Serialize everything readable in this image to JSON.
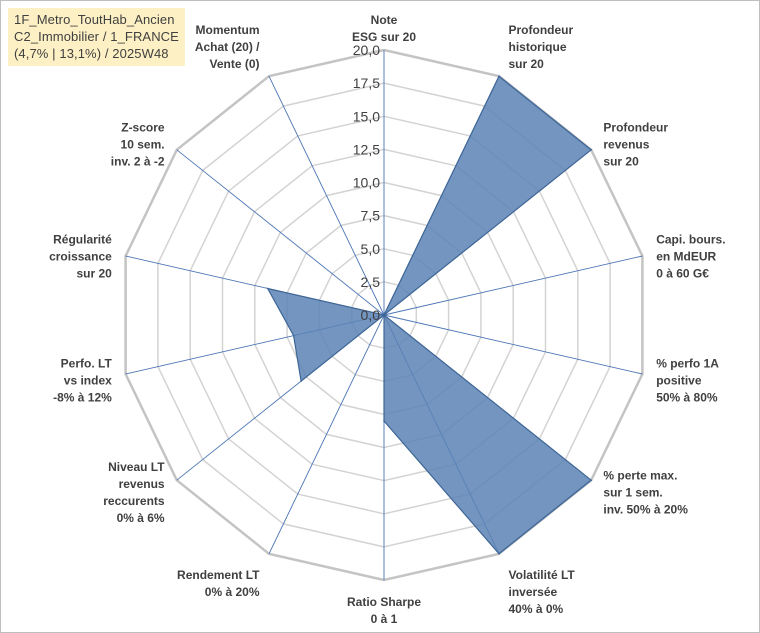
{
  "title": {
    "lines": [
      "1F_Metro_ToutHab_Ancien",
      "C2_Immobilier / 1_FRANCE",
      "(4,7% | 13,1%) / 2025W48"
    ]
  },
  "chart_data": {
    "type": "radar",
    "ylim": [
      0,
      20
    ],
    "ticks": [
      "0,0",
      "2,5",
      "5,0",
      "7,5",
      "10,0",
      "12,5",
      "15,0",
      "17,5",
      "20,0"
    ],
    "tick_values": [
      0,
      2.5,
      5,
      7.5,
      10,
      12.5,
      15,
      17.5,
      20
    ],
    "axes": [
      [
        "Note",
        "ESG sur 20"
      ],
      [
        "Profondeur",
        "historique",
        "sur 20"
      ],
      [
        "Profondeur",
        "revenus",
        "sur 20"
      ],
      [
        "Capi. bours.",
        "en MdEUR",
        "0 à 60 G€"
      ],
      [
        "% perfo 1A",
        "positive",
        "50% à 80%"
      ],
      [
        "% perte max.",
        "sur 1 sem.",
        "inv. 50% à 20%"
      ],
      [
        "Volatilité LT",
        "inversée",
        "40% à 0%"
      ],
      [
        "Ratio Sharpe",
        "0 à 1"
      ],
      [
        "Rendement LT",
        "0% à 20%"
      ],
      [
        "Niveau LT",
        "revenus",
        "reccurents",
        "0% à 6%"
      ],
      [
        "Perfo. LT",
        "vs index",
        "-8% à 12%"
      ],
      [
        "Régularité",
        "croissance",
        "sur 20"
      ],
      [
        "Z-score",
        "10 sem.",
        "inv. 2 à -2"
      ],
      [
        "Momentum",
        "Achat (20) /",
        "Vente (0)"
      ]
    ],
    "values": [
      0,
      20,
      20,
      0,
      0,
      20,
      20,
      8,
      0,
      8,
      7,
      9,
      0,
      0
    ],
    "grid": true,
    "colors": {
      "fill": "#5b82b5",
      "stroke": "#3e6696",
      "grid": "#d3d3d3",
      "spoke": "#4a74b4"
    }
  }
}
